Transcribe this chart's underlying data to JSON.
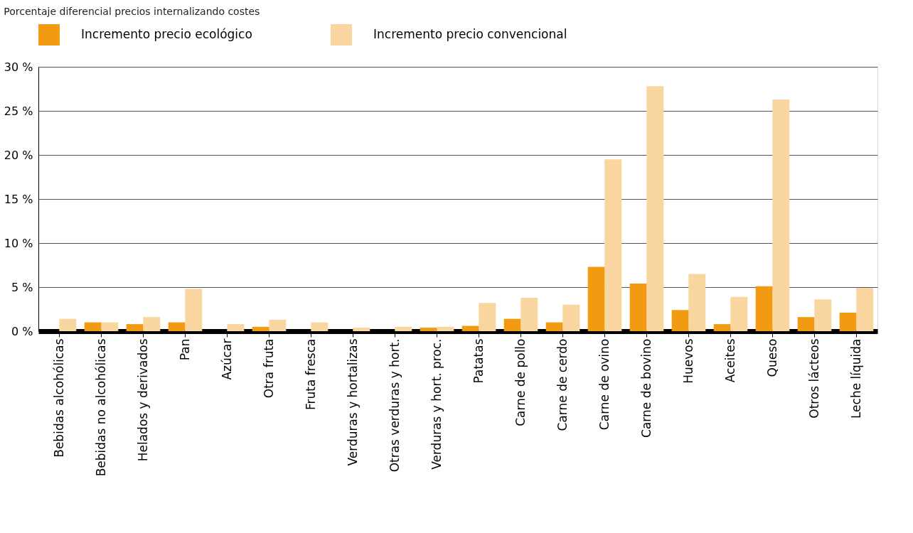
{
  "chart_data": {
    "type": "bar",
    "title": "Porcentaje diferencial precios internalizando costes",
    "categories": [
      "Bebidas alcohólicas",
      "Bebidas no alcohólicas",
      "Helados y derivados",
      "Pan",
      "Azúcar",
      "Otra fruta",
      "Fruta fresca",
      "Verduras y hortalizas",
      "Otras verduras y hort.",
      "Verduras y hort. proc.",
      "Patatas",
      "Carne de pollo",
      "Carne de cerdo",
      "Carne de ovino",
      "Carne de bovino",
      "Huevos",
      "Aceites",
      "Queso",
      "Otros lácteos",
      "Leche líquida"
    ],
    "series": [
      {
        "name": "Incremento precio ecológico",
        "color": "#f29a12",
        "values": [
          0,
          1.0,
          0.8,
          1.0,
          0,
          0.5,
          0,
          0,
          0,
          0.4,
          0.6,
          1.4,
          1.0,
          7.3,
          5.4,
          2.4,
          0.8,
          5.1,
          1.6,
          2.1
        ]
      },
      {
        "name": "Incremento precio convencional",
        "color": "#f9d6a0",
        "values": [
          1.4,
          1.0,
          1.6,
          4.8,
          0.8,
          1.3,
          1.0,
          0.4,
          0.5,
          0.5,
          3.2,
          3.8,
          3.0,
          19.5,
          27.8,
          6.5,
          3.9,
          26.3,
          3.6,
          4.9
        ]
      }
    ],
    "ylim": [
      0,
      30
    ],
    "yticks": [
      {
        "value": 0,
        "label": "0 %"
      },
      {
        "value": 5,
        "label": "5 %"
      },
      {
        "value": 10,
        "label": "10 %"
      },
      {
        "value": 15,
        "label": "15 %"
      },
      {
        "value": 20,
        "label": "20 %"
      },
      {
        "value": 25,
        "label": "25 %"
      },
      {
        "value": 30,
        "label": "30 %"
      }
    ],
    "grid": "y",
    "legend": "top left"
  }
}
